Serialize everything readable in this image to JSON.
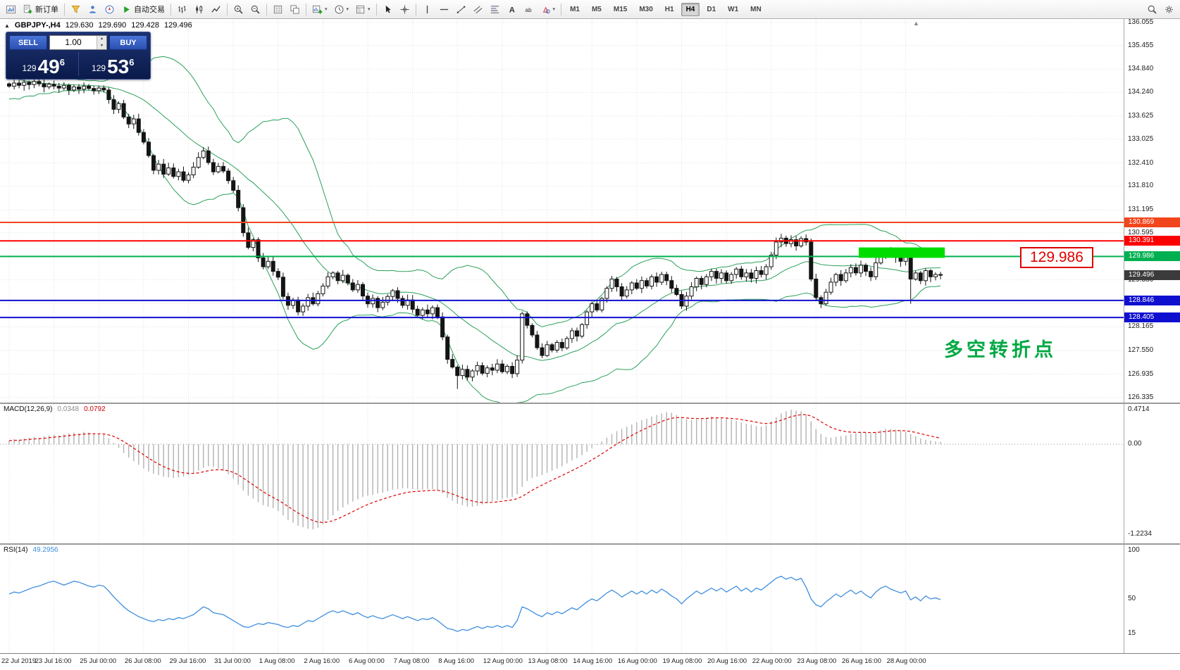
{
  "toolbar": {
    "new_order_label": "新订单",
    "autotrading_label": "自动交易",
    "timeframes": [
      "M1",
      "M5",
      "M15",
      "M30",
      "H1",
      "H4",
      "D1",
      "W1",
      "MN"
    ],
    "active_timeframe": "H4",
    "items": [
      {
        "type": "button",
        "name": "chart-window-button",
        "icon": "chart-window-icon"
      },
      {
        "type": "button",
        "name": "new-order-button",
        "icon": "new-order-icon",
        "label_key": "new_order_label"
      },
      {
        "type": "sep"
      },
      {
        "type": "button",
        "name": "metaeditor-button",
        "icon": "metaeditor-icon"
      },
      {
        "type": "button",
        "name": "market-watch-button",
        "icon": "market-watch-icon"
      },
      {
        "type": "button",
        "name": "navigator-button",
        "icon": "navigator-icon"
      },
      {
        "type": "button",
        "name": "autotrading-button",
        "icon": "autotrading-play-icon",
        "label_key": "autotrading_label"
      },
      {
        "type": "sep"
      },
      {
        "type": "button",
        "name": "bar-chart-button",
        "icon": "bar-chart-icon"
      },
      {
        "type": "button",
        "name": "candlestick-button",
        "icon": "candlestick-icon"
      },
      {
        "type": "button",
        "name": "line-chart-button",
        "icon": "line-chart-icon"
      },
      {
        "type": "sep"
      },
      {
        "type": "button",
        "name": "zoom-in-button",
        "icon": "zoom-in-icon"
      },
      {
        "type": "button",
        "name": "zoom-out-button",
        "icon": "zoom-out-icon"
      },
      {
        "type": "sep"
      },
      {
        "type": "button",
        "name": "grid-button",
        "icon": "grid-icon"
      },
      {
        "type": "button",
        "name": "arrange-windows-button",
        "icon": "arrange-icon"
      },
      {
        "type": "sep"
      },
      {
        "type": "button",
        "name": "new-chart-button",
        "icon": "new-chart-icon",
        "caret": true
      },
      {
        "type": "button",
        "name": "periods-button",
        "icon": "clock-icon",
        "caret": true
      },
      {
        "type": "button",
        "name": "templates-button",
        "icon": "template-icon",
        "caret": true
      },
      {
        "type": "sep"
      },
      {
        "type": "button",
        "name": "cursor-button",
        "icon": "cursor-icon"
      },
      {
        "type": "button",
        "name": "crosshair-button",
        "icon": "crosshair-icon"
      },
      {
        "type": "sep"
      },
      {
        "type": "button",
        "name": "vertical-line-button",
        "icon": "vertical-line-icon"
      },
      {
        "type": "button",
        "name": "horizontal-line-button",
        "icon": "horizontal-line-icon"
      },
      {
        "type": "button",
        "name": "trendline-button",
        "icon": "trendline-icon"
      },
      {
        "type": "button",
        "name": "channel-button",
        "icon": "channel-icon"
      },
      {
        "type": "button",
        "name": "fibonacci-button",
        "icon": "fibonacci-icon"
      },
      {
        "type": "button",
        "name": "text-button",
        "icon": "text-icon"
      },
      {
        "type": "button",
        "name": "label-button",
        "icon": "label-icon"
      },
      {
        "type": "button",
        "name": "shapes-button",
        "icon": "shapes-icon",
        "caret": true
      },
      {
        "type": "sep"
      },
      {
        "type": "timeframes"
      },
      {
        "type": "spacer"
      },
      {
        "type": "button",
        "name": "search-button",
        "icon": "search-icon"
      },
      {
        "type": "button",
        "name": "settings-button",
        "icon": "settings-icon"
      }
    ]
  },
  "symbol_info": {
    "symbol": "GBPJPY-,H4",
    "open": "129.630",
    "high": "129.690",
    "low": "129.428",
    "close": "129.496"
  },
  "one_click": {
    "sell_label": "SELL",
    "buy_label": "BUY",
    "volume": "1.00",
    "sell_price": {
      "small": "129",
      "big": "49",
      "sup": "6"
    },
    "buy_price": {
      "small": "129",
      "big": "53",
      "sup": "6"
    }
  },
  "indicators": {
    "macd_title": "MACD(12,26,9)",
    "macd_value": "0.0348",
    "macd_signal": "0.0792",
    "rsi_title": "RSI(14)",
    "rsi_value": "49.2956"
  },
  "annotations": {
    "price_label": "129.986",
    "note": "多空转折点"
  },
  "icons": {
    "collapse": "▲",
    "shift_marker": "▲",
    "volume_up": "▴",
    "volume_down": "▾",
    "caret": "▾"
  },
  "colors": {
    "bollinger": "#2aa05a",
    "macd_histogram": "#b2b2b2",
    "macd_signal": "#e00000",
    "rsi_line": "#3e8ede",
    "grid": "#e2e2e2",
    "candle_up_fill": "#ffffff",
    "candle_down_fill": "#141414",
    "candle_outline": "#141414",
    "highlight": "#00dc00",
    "accent_blue_button": "#2b4fb0"
  },
  "chart_data": {
    "type": "candlestick",
    "symbol": "GBPJPY-",
    "timeframe": "H4",
    "price_range": [
      126.2,
      136.14
    ],
    "price_ticks": [
      "136.055",
      "135.455",
      "134.840",
      "134.240",
      "133.625",
      "133.025",
      "132.410",
      "131.810",
      "131.195",
      "130.595",
      "129.980",
      "129.380",
      "128.765",
      "128.165",
      "127.550",
      "126.935",
      "126.335"
    ],
    "price_badges": [
      {
        "label": "130.869",
        "price": 130.869,
        "color": "#f2451c"
      },
      {
        "label": "130.391",
        "price": 130.391,
        "color": "#fd0000"
      },
      {
        "label": "129.986",
        "price": 129.986,
        "color": "#00b050"
      },
      {
        "label": "129.496",
        "price": 129.496,
        "color": "#3b3b3b",
        "name": "current"
      },
      {
        "label": "128.846",
        "price": 128.846,
        "color": "#0f0fd0"
      },
      {
        "label": "128.405",
        "price": 128.405,
        "color": "#0f0fd0"
      }
    ],
    "hlines": [
      {
        "price": 130.869,
        "color": "#f2451c"
      },
      {
        "price": 130.391,
        "color": "#fd0000"
      },
      {
        "price": 129.986,
        "color": "#00b050"
      },
      {
        "price": 128.846,
        "color": "#0f0fd0"
      },
      {
        "price": 128.405,
        "color": "#0f0fd0"
      }
    ],
    "highlight_box": {
      "price_low": 129.95,
      "price_high": 130.22,
      "start_index": 171,
      "color": "#00dc00"
    },
    "bollinger": {
      "period": 20,
      "deviation": 2
    },
    "pre_closes": [
      135.6,
      135.1,
      134.7,
      135.25,
      134.95,
      134.55,
      135.05,
      134.7,
      134.4,
      134.85,
      134.5,
      134.2,
      134.65,
      134.35,
      134.6,
      134.3,
      134.55,
      134.4,
      134.52,
      134.46
    ],
    "closes": [
      134.4,
      134.48,
      134.42,
      134.5,
      134.44,
      134.52,
      134.46,
      134.38,
      134.45,
      134.4,
      134.35,
      134.42,
      134.3,
      134.38,
      134.32,
      134.4,
      134.34,
      134.28,
      134.35,
      134.3,
      134.05,
      133.8,
      133.95,
      133.6,
      133.42,
      133.55,
      133.2,
      132.95,
      132.6,
      132.22,
      132.38,
      132.12,
      132.28,
      132.06,
      132.18,
      131.96,
      132.1,
      132.3,
      132.55,
      132.72,
      132.42,
      132.18,
      132.32,
      132.2,
      131.95,
      131.7,
      131.25,
      130.6,
      130.22,
      130.42,
      129.95,
      129.72,
      129.86,
      129.6,
      129.45,
      128.95,
      128.72,
      128.86,
      128.55,
      128.7,
      128.92,
      128.76,
      129.02,
      129.22,
      129.46,
      129.56,
      129.36,
      129.5,
      129.3,
      129.12,
      129.26,
      128.96,
      128.76,
      128.9,
      128.66,
      128.8,
      128.95,
      129.1,
      128.9,
      128.72,
      128.86,
      128.62,
      128.46,
      128.6,
      128.5,
      128.66,
      128.42,
      127.9,
      127.32,
      127.12,
      126.9,
      127.06,
      126.86,
      127.02,
      127.16,
      126.96,
      127.1,
      127.04,
      127.2,
      127.0,
      127.14,
      126.95,
      127.3,
      128.5,
      128.2,
      127.95,
      127.62,
      127.42,
      127.7,
      127.56,
      127.76,
      127.62,
      127.86,
      128.06,
      127.92,
      128.22,
      128.55,
      128.76,
      128.6,
      128.9,
      129.16,
      129.4,
      129.2,
      128.96,
      129.12,
      129.3,
      129.16,
      129.36,
      129.22,
      129.46,
      129.32,
      129.52,
      129.36,
      129.16,
      129.0,
      128.7,
      128.96,
      129.2,
      129.42,
      129.26,
      129.46,
      129.6,
      129.42,
      129.56,
      129.36,
      129.52,
      129.66,
      129.46,
      129.56,
      129.42,
      129.62,
      129.52,
      129.72,
      130.02,
      130.36,
      130.46,
      130.32,
      130.42,
      130.26,
      130.45,
      130.36,
      129.4,
      128.92,
      128.76,
      129.06,
      129.32,
      129.52,
      129.36,
      129.56,
      129.7,
      129.56,
      129.76,
      129.6,
      129.46,
      129.82,
      130.06,
      130.16,
      130.02,
      129.96,
      129.86,
      129.96,
      129.4,
      129.56,
      129.36,
      129.62,
      129.46,
      129.52,
      129.5
    ],
    "wick_overrides": {
      "90": {
        "low": 126.55
      },
      "103": {
        "high": 128.56
      },
      "161": {
        "high": 130.45
      },
      "181": {
        "low": 128.76
      }
    },
    "x_dates": {
      "labels": [
        "22 Jul 2019",
        "23 Jul 16:00",
        "25 Jul 00:00",
        "26 Jul 08:00",
        "29 Jul 16:00",
        "31 Jul 00:00",
        "1 Aug 08:00",
        "2 Aug 16:00",
        "6 Aug 00:00",
        "7 Aug 08:00",
        "8 Aug 16:00",
        "12 Aug 00:00",
        "13 Aug 08:00",
        "14 Aug 16:00",
        "16 Aug 00:00",
        "19 Aug 08:00",
        "20 Aug 16:00",
        "22 Aug 00:00",
        "23 Aug 08:00",
        "26 Aug 16:00",
        "28 Aug 00:00"
      ],
      "candle_indices": [
        0,
        9,
        18,
        27,
        36,
        45,
        54,
        63,
        72,
        81,
        90,
        99,
        108,
        117,
        126,
        135,
        144,
        153,
        162,
        171,
        180
      ]
    },
    "macd": {
      "range": [
        -1.35,
        0.55
      ],
      "axis_labels": [
        {
          "text": "0.4714",
          "value": 0.4714
        },
        {
          "text": "0.00",
          "value": 0.0
        },
        {
          "text": "-1.2234",
          "value": -1.2234
        }
      ],
      "values": [
        0.05,
        0.07,
        0.06,
        0.08,
        0.09,
        0.1,
        0.09,
        0.11,
        0.12,
        0.13,
        0.12,
        0.14,
        0.15,
        0.16,
        0.15,
        0.17,
        0.16,
        0.15,
        0.14,
        0.13,
        0.08,
        0.02,
        -0.05,
        -0.12,
        -0.18,
        -0.23,
        -0.28,
        -0.33,
        -0.37,
        -0.4,
        -0.42,
        -0.44,
        -0.45,
        -0.46,
        -0.45,
        -0.44,
        -0.42,
        -0.4,
        -0.36,
        -0.32,
        -0.3,
        -0.31,
        -0.33,
        -0.36,
        -0.41,
        -0.47,
        -0.55,
        -0.63,
        -0.7,
        -0.74,
        -0.79,
        -0.83,
        -0.85,
        -0.87,
        -0.91,
        -0.97,
        -1.03,
        -1.07,
        -1.11,
        -1.13,
        -1.15,
        -1.16,
        -1.14,
        -1.09,
        -1.03,
        -0.97,
        -0.91,
        -0.86,
        -0.82,
        -0.78,
        -0.75,
        -0.72,
        -0.7,
        -0.69,
        -0.67,
        -0.66,
        -0.64,
        -0.62,
        -0.61,
        -0.6,
        -0.6,
        -0.61,
        -0.62,
        -0.62,
        -0.61,
        -0.61,
        -0.63,
        -0.67,
        -0.73,
        -0.77,
        -0.81,
        -0.83,
        -0.85,
        -0.85,
        -0.84,
        -0.82,
        -0.8,
        -0.78,
        -0.76,
        -0.74,
        -0.73,
        -0.72,
        -0.68,
        -0.58,
        -0.5,
        -0.46,
        -0.44,
        -0.42,
        -0.39,
        -0.36,
        -0.33,
        -0.3,
        -0.26,
        -0.22,
        -0.19,
        -0.15,
        -0.1,
        -0.05,
        -0.01,
        0.04,
        0.09,
        0.14,
        0.18,
        0.21,
        0.24,
        0.27,
        0.3,
        0.33,
        0.35,
        0.38,
        0.4,
        0.42,
        0.44,
        0.43,
        0.4,
        0.37,
        0.34,
        0.33,
        0.34,
        0.35,
        0.36,
        0.38,
        0.37,
        0.36,
        0.35,
        0.33,
        0.32,
        0.3,
        0.28,
        0.27,
        0.25,
        0.24,
        0.26,
        0.31,
        0.37,
        0.42,
        0.45,
        0.47,
        0.46,
        0.45,
        0.41,
        0.31,
        0.21,
        0.14,
        0.1,
        0.09,
        0.1,
        0.11,
        0.12,
        0.14,
        0.15,
        0.16,
        0.16,
        0.15,
        0.17,
        0.19,
        0.21,
        0.21,
        0.2,
        0.19,
        0.17,
        0.14,
        0.11,
        0.08,
        0.06,
        0.05,
        0.04,
        0.0348
      ]
    },
    "rsi": {
      "range": [
        -5,
        105
      ],
      "axis_labels": [
        {
          "text": "100",
          "value": 100
        },
        {
          "text": "50",
          "value": 50
        },
        {
          "text": "15",
          "value": 15
        }
      ],
      "values": [
        55,
        57,
        56,
        58,
        60,
        62,
        63,
        65,
        67,
        68,
        66,
        64,
        66,
        68,
        67,
        65,
        63,
        62,
        64,
        63,
        58,
        52,
        47,
        42,
        38,
        35,
        32,
        30,
        28,
        27,
        29,
        28,
        30,
        29,
        31,
        30,
        32,
        34,
        38,
        42,
        40,
        36,
        35,
        34,
        31,
        28,
        25,
        22,
        21,
        23,
        25,
        24,
        26,
        25,
        24,
        22,
        21,
        23,
        22,
        25,
        28,
        27,
        30,
        33,
        36,
        38,
        36,
        38,
        36,
        34,
        36,
        33,
        31,
        33,
        31,
        30,
        32,
        34,
        32,
        30,
        32,
        30,
        28,
        30,
        29,
        31,
        28,
        24,
        20,
        19,
        17,
        19,
        18,
        20,
        22,
        20,
        22,
        21,
        23,
        21,
        23,
        21,
        28,
        42,
        40,
        37,
        34,
        32,
        36,
        34,
        37,
        35,
        38,
        41,
        39,
        43,
        47,
        50,
        48,
        52,
        56,
        59,
        56,
        52,
        55,
        58,
        55,
        58,
        55,
        59,
        56,
        60,
        57,
        53,
        50,
        45,
        50,
        54,
        58,
        55,
        58,
        61,
        58,
        61,
        57,
        60,
        63,
        58,
        61,
        57,
        61,
        59,
        63,
        67,
        71,
        73,
        70,
        72,
        69,
        71,
        62,
        50,
        44,
        42,
        47,
        51,
        55,
        52,
        56,
        59,
        55,
        58,
        54,
        51,
        57,
        61,
        63,
        60,
        58,
        56,
        58,
        49,
        52,
        48,
        53,
        50,
        51,
        49.2956
      ]
    }
  }
}
